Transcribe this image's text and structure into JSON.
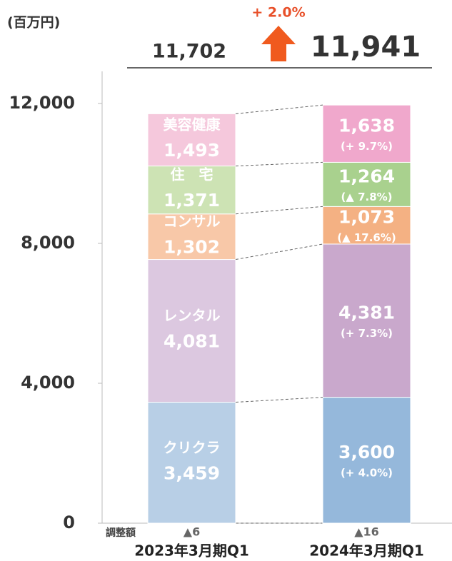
{
  "chart_data": {
    "type": "stacked_bar",
    "unit_label": "(百万円)",
    "categories": [
      "2023年3月期Q1",
      "2024年3月期Q1"
    ],
    "series": [
      {
        "name": "クリクラ",
        "colors": [
          "#b8cfe6",
          "#95b8db"
        ],
        "values": [
          3459,
          3600
        ],
        "value_labels": [
          "3,459",
          "3,600"
        ],
        "change_labels": [
          null,
          "(+ 4.0%)"
        ]
      },
      {
        "name": "レンタル",
        "colors": [
          "#dcc8e0",
          "#c9a8cc"
        ],
        "values": [
          4081,
          4381
        ],
        "value_labels": [
          "4,081",
          "4,381"
        ],
        "change_labels": [
          null,
          "(+ 7.3%)"
        ]
      },
      {
        "name": "コンサル",
        "colors": [
          "#f8c8a8",
          "#f4b183"
        ],
        "values": [
          1302,
          1073
        ],
        "value_labels": [
          "1,302",
          "1,073"
        ],
        "change_labels": [
          null,
          "(▲ 17.6%)"
        ]
      },
      {
        "name": "住　宅",
        "colors": [
          "#cde3b4",
          "#a9d18e"
        ],
        "values": [
          1371,
          1264
        ],
        "value_labels": [
          "1,371",
          "1,264"
        ],
        "change_labels": [
          null,
          "(▲ 7.8%)"
        ]
      },
      {
        "name": "美容健康",
        "colors": [
          "#f5c8dc",
          "#f0a8cc"
        ],
        "values": [
          1493,
          1638
        ],
        "value_labels": [
          "1,493",
          "1,638"
        ],
        "change_labels": [
          null,
          "(+ 9.7%)"
        ]
      }
    ],
    "totals": [
      11702,
      11941
    ],
    "total_labels": [
      "11,702",
      "11,941"
    ],
    "growth_label": "+ 2.0%",
    "adjustment_title": "調整額",
    "adjustments": [
      -6,
      -16
    ],
    "adjustment_labels": [
      "▲6",
      "▲16"
    ],
    "ylim": [
      0,
      12000
    ],
    "yticks": [
      0,
      {
        "value": 4000,
        "label": "4,000"
      },
      {
        "value": 8000,
        "label": "8,000"
      },
      {
        "value": 12000,
        "label": "12,000"
      }
    ]
  }
}
